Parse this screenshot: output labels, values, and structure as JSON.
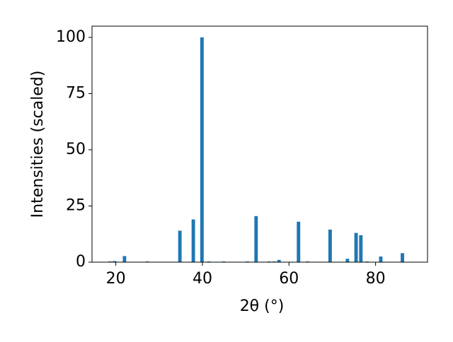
{
  "chart_data": {
    "type": "bar",
    "x": [
      18.7,
      19.7,
      22.0,
      27.3,
      34.8,
      37.9,
      39.9,
      41.5,
      44.9,
      50.4,
      52.4,
      55.4,
      56.6,
      57.7,
      62.2,
      64.3,
      69.5,
      73.5,
      75.5,
      76.6,
      78.0,
      81.2,
      86.2
    ],
    "values": [
      0.3,
      0.5,
      2.7,
      0.3,
      14,
      19,
      100,
      0.3,
      0.3,
      0.3,
      20.5,
      0.3,
      0.3,
      1,
      18,
      0.3,
      14.5,
      1.5,
      13,
      12,
      0.3,
      2.5,
      4
    ],
    "color": "#1f77b4",
    "bar_width": 0.8,
    "xlabel": "2θ (°)",
    "ylabel": "Intensities (scaled)",
    "xlim": [
      14.5,
      92
    ],
    "xticks": [
      20,
      40,
      60,
      80
    ],
    "ylim": [
      0,
      105
    ],
    "yticks": [
      0,
      25,
      50,
      75,
      100
    ],
    "grid": false
  }
}
